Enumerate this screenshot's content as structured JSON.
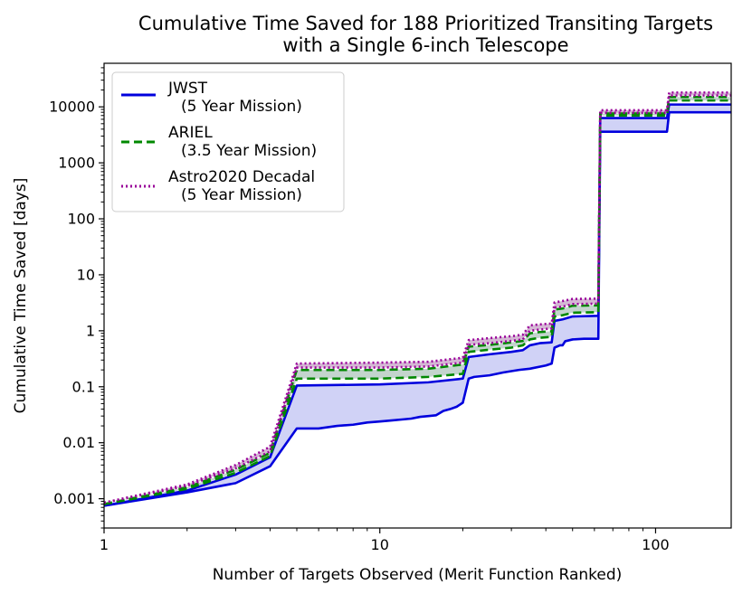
{
  "chart_data": {
    "type": "line",
    "title": "Cumulative Time Saved for 188 Prioritized Transiting Targets",
    "subtitle": "with a Single 6-inch Telescope",
    "xlabel": "Number of Targets Observed (Merit Function Ranked)",
    "ylabel": "Cumulative Time Saved [days]",
    "xscale": "log",
    "yscale": "log",
    "xlim": [
      1,
      188
    ],
    "ylim": [
      0.0003,
      60000
    ],
    "xticks": [
      {
        "value": 1,
        "label": "1"
      },
      {
        "value": 10,
        "label": "10"
      },
      {
        "value": 100,
        "label": "100"
      }
    ],
    "yticks": [
      {
        "value": 0.001,
        "label": "0.001"
      },
      {
        "value": 0.01,
        "label": "0.01"
      },
      {
        "value": 0.1,
        "label": "0.1"
      },
      {
        "value": 1,
        "label": "1"
      },
      {
        "value": 10,
        "label": "10"
      },
      {
        "value": 100,
        "label": "100"
      },
      {
        "value": 1000,
        "label": "1000"
      },
      {
        "value": 10000,
        "label": "10000"
      }
    ],
    "grid": false,
    "legend_position": "top-left",
    "series": [
      {
        "name": "JWST",
        "name_line2": "(5 Year Mission)",
        "color": "#0000dd",
        "style": "solid",
        "lower": [
          [
            1,
            0.00075
          ],
          [
            2,
            0.0013
          ],
          [
            3,
            0.0019
          ],
          [
            4,
            0.0038
          ],
          [
            5,
            0.018
          ],
          [
            6,
            0.018
          ],
          [
            7,
            0.02
          ],
          [
            8,
            0.021
          ],
          [
            9,
            0.023
          ],
          [
            10,
            0.024
          ],
          [
            11,
            0.025
          ],
          [
            12,
            0.026
          ],
          [
            13,
            0.027
          ],
          [
            14,
            0.029
          ],
          [
            15,
            0.03
          ],
          [
            16,
            0.031
          ],
          [
            17,
            0.037
          ],
          [
            18,
            0.04
          ],
          [
            19,
            0.044
          ],
          [
            20,
            0.052
          ],
          [
            21,
            0.14
          ],
          [
            22,
            0.15
          ],
          [
            25,
            0.16
          ],
          [
            28,
            0.18
          ],
          [
            30,
            0.19
          ],
          [
            32,
            0.2
          ],
          [
            35,
            0.21
          ],
          [
            40,
            0.24
          ],
          [
            42,
            0.26
          ],
          [
            43,
            0.5
          ],
          [
            45,
            0.55
          ],
          [
            46,
            0.55
          ],
          [
            47,
            0.65
          ],
          [
            50,
            0.7
          ],
          [
            55,
            0.72
          ],
          [
            62,
            0.72
          ],
          [
            63,
            3600
          ],
          [
            110,
            3600
          ],
          [
            112,
            8000
          ],
          [
            188,
            8000
          ]
        ],
        "upper": [
          [
            1,
            0.00075
          ],
          [
            2,
            0.0014
          ],
          [
            3,
            0.0027
          ],
          [
            4,
            0.0055
          ],
          [
            5,
            0.105
          ],
          [
            10,
            0.11
          ],
          [
            15,
            0.12
          ],
          [
            20,
            0.14
          ],
          [
            21,
            0.34
          ],
          [
            25,
            0.38
          ],
          [
            30,
            0.42
          ],
          [
            33,
            0.45
          ],
          [
            35,
            0.55
          ],
          [
            38,
            0.6
          ],
          [
            42,
            0.62
          ],
          [
            43,
            1.5
          ],
          [
            46,
            1.6
          ],
          [
            50,
            1.8
          ],
          [
            62,
            1.85
          ],
          [
            63,
            6300
          ],
          [
            110,
            6300
          ],
          [
            112,
            11000
          ],
          [
            188,
            11000
          ]
        ]
      },
      {
        "name": "ARIEL",
        "name_line2": "(3.5 Year Mission)",
        "color": "#008800",
        "style": "dashed",
        "lower": [
          [
            1,
            0.0008
          ],
          [
            2,
            0.0015
          ],
          [
            3,
            0.0029
          ],
          [
            4,
            0.0058
          ],
          [
            5,
            0.14
          ],
          [
            10,
            0.14
          ],
          [
            15,
            0.15
          ],
          [
            20,
            0.17
          ],
          [
            21,
            0.42
          ],
          [
            25,
            0.46
          ],
          [
            30,
            0.5
          ],
          [
            33,
            0.55
          ],
          [
            35,
            0.7
          ],
          [
            38,
            0.75
          ],
          [
            42,
            0.78
          ],
          [
            43,
            1.8
          ],
          [
            46,
            1.9
          ],
          [
            50,
            2.1
          ],
          [
            62,
            2.15
          ],
          [
            63,
            7000
          ],
          [
            110,
            7000
          ],
          [
            112,
            13000
          ],
          [
            188,
            13000
          ]
        ],
        "upper": [
          [
            1,
            0.0008
          ],
          [
            2,
            0.0016
          ],
          [
            3,
            0.0033
          ],
          [
            4,
            0.0066
          ],
          [
            5,
            0.2
          ],
          [
            10,
            0.2
          ],
          [
            15,
            0.21
          ],
          [
            20,
            0.25
          ],
          [
            21,
            0.52
          ],
          [
            25,
            0.56
          ],
          [
            30,
            0.62
          ],
          [
            33,
            0.66
          ],
          [
            35,
            0.9
          ],
          [
            38,
            0.95
          ],
          [
            42,
            0.98
          ],
          [
            43,
            2.4
          ],
          [
            46,
            2.5
          ],
          [
            50,
            2.8
          ],
          [
            62,
            2.85
          ],
          [
            63,
            7600
          ],
          [
            110,
            7600
          ],
          [
            112,
            15000
          ],
          [
            188,
            15000
          ]
        ]
      },
      {
        "name": "Astro2020 Decadal",
        "name_line2": "(5 Year Mission)",
        "color": "#990099",
        "style": "dotted",
        "lower": [
          [
            1,
            0.00085
          ],
          [
            2,
            0.0017
          ],
          [
            3,
            0.0035
          ],
          [
            4,
            0.007
          ],
          [
            5,
            0.22
          ],
          [
            10,
            0.22
          ],
          [
            15,
            0.23
          ],
          [
            20,
            0.27
          ],
          [
            21,
            0.56
          ],
          [
            25,
            0.6
          ],
          [
            30,
            0.66
          ],
          [
            33,
            0.7
          ],
          [
            35,
            1.0
          ],
          [
            38,
            1.05
          ],
          [
            42,
            1.1
          ],
          [
            43,
            2.6
          ],
          [
            46,
            2.7
          ],
          [
            50,
            3.0
          ],
          [
            62,
            3.05
          ],
          [
            63,
            7800
          ],
          [
            110,
            7800
          ],
          [
            112,
            16000
          ],
          [
            188,
            16000
          ]
        ],
        "upper": [
          [
            1,
            0.00085
          ],
          [
            2,
            0.0018
          ],
          [
            3,
            0.004
          ],
          [
            4,
            0.0085
          ],
          [
            5,
            0.26
          ],
          [
            10,
            0.27
          ],
          [
            15,
            0.28
          ],
          [
            20,
            0.33
          ],
          [
            21,
            0.68
          ],
          [
            25,
            0.74
          ],
          [
            30,
            0.8
          ],
          [
            33,
            0.85
          ],
          [
            35,
            1.25
          ],
          [
            38,
            1.3
          ],
          [
            42,
            1.35
          ],
          [
            43,
            3.2
          ],
          [
            46,
            3.4
          ],
          [
            50,
            3.7
          ],
          [
            62,
            3.75
          ],
          [
            63,
            8700
          ],
          [
            110,
            8700
          ],
          [
            112,
            18000
          ],
          [
            188,
            18000
          ]
        ]
      }
    ]
  }
}
